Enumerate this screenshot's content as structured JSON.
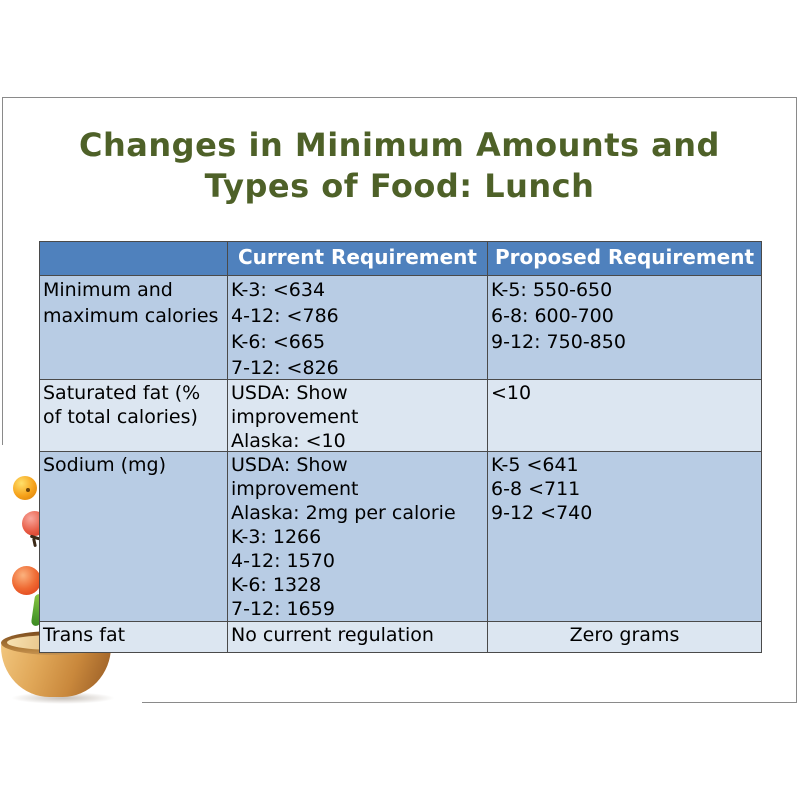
{
  "slide": {
    "title_lines": [
      "Changes in Minimum Amounts and",
      "Types of Food: Lunch"
    ],
    "title_color": "#4e6128",
    "border_color": "#8a8a8a",
    "background": "#ffffff"
  },
  "table": {
    "columns": [
      "",
      "Current Requirement",
      "Proposed Requirement"
    ],
    "rows": [
      {
        "cells": [
          {
            "lines": [
              "Minimum and",
              "maximum calories"
            ]
          },
          {
            "lines": [
              "K-3: <634",
              "4-12: <786",
              "K-6: <665",
              "7-12: <826"
            ]
          },
          {
            "lines": [
              "K-5: 550-650",
              "6-8: 600-700",
              "9-12: 750-850"
            ]
          }
        ]
      },
      {
        "cells": [
          {
            "lines": [
              "Saturated fat (%",
              "of total calories)"
            ]
          },
          {
            "lines": [
              "USDA: Show",
              "improvement",
              "Alaska: <10"
            ]
          },
          {
            "lines": [
              "<10"
            ]
          }
        ]
      },
      {
        "cells": [
          {
            "lines": [
              "Sodium (mg)"
            ]
          },
          {
            "lines": [
              "USDA: Show",
              "improvement",
              "Alaska: 2mg per calorie",
              "K-3: 1266",
              "4-12: 1570",
              "K-6: 1328",
              "7-12: 1659"
            ]
          },
          {
            "lines": [
              "K-5 <641",
              "6-8 <711",
              "9-12 <740"
            ]
          }
        ]
      },
      {
        "cells": [
          {
            "lines": [
              "Trans fat"
            ]
          },
          {
            "lines": [
              "No current regulation"
            ]
          },
          {
            "lines": [
              "Zero grams"
            ],
            "align": "center"
          }
        ]
      }
    ],
    "colors": {
      "header_bg": "#4f81bd",
      "header_text": "#ffffff",
      "row_band_dark": "#b8cce4",
      "row_band_light": "#dce6f1",
      "grid_border": "#4a4a4a",
      "body_text": "#000000"
    }
  },
  "decoration": {
    "description": "wooden bowl with falling tomatoes photo",
    "items": [
      "orange-cherry-tomato",
      "red-tomato",
      "tomato-calyx",
      "red-tomato-large",
      "green-stem",
      "wooden-bowl"
    ]
  }
}
